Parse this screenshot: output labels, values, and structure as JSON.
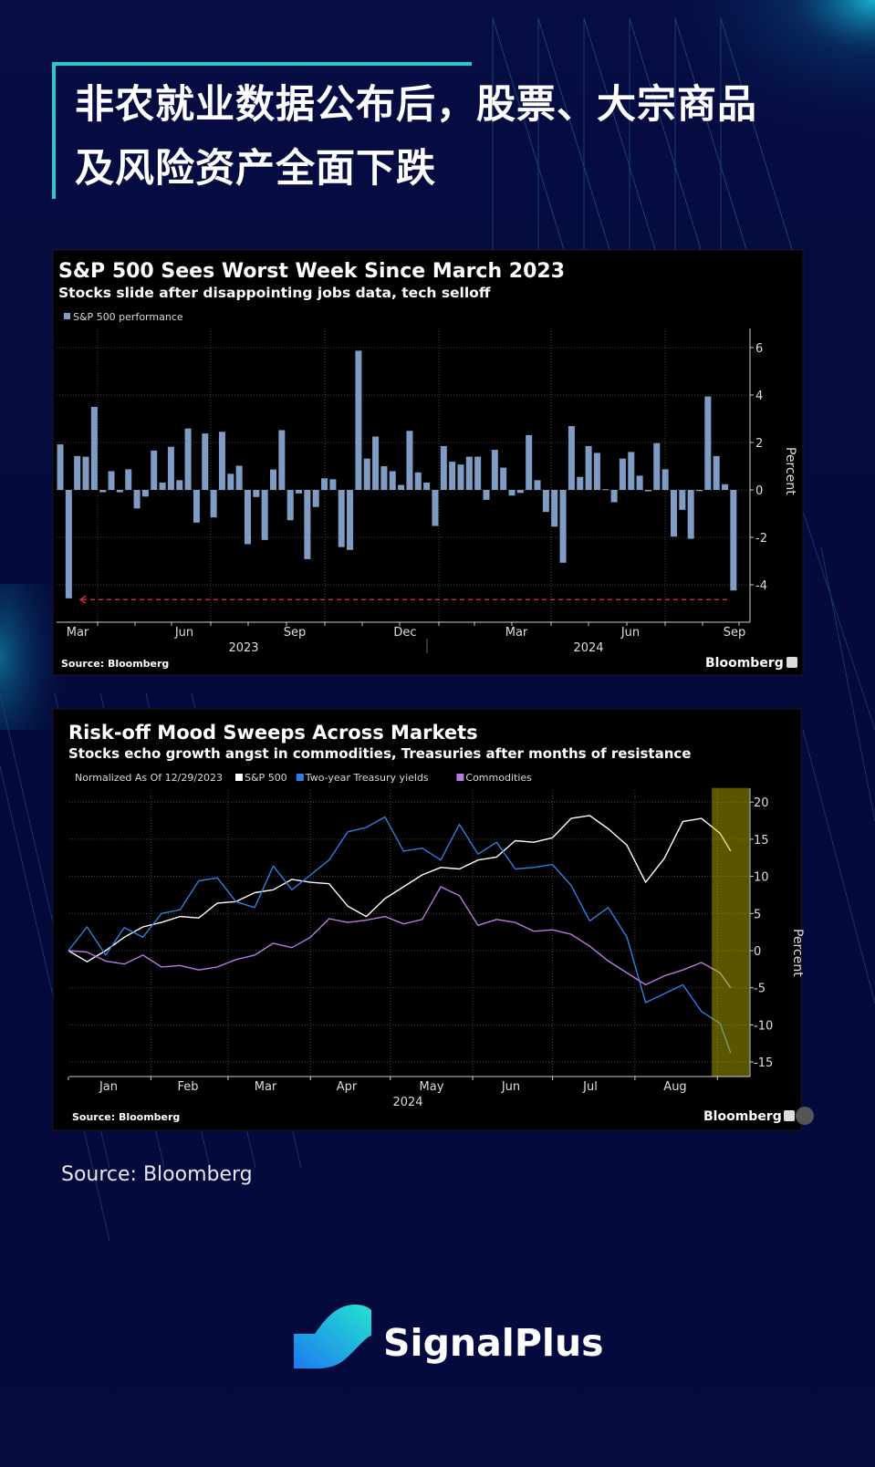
{
  "headline": {
    "line1": "非农就业数据公布后，股票、大宗商品",
    "line2": "及风险资产全面下跌",
    "accent": "#2cc7c9"
  },
  "page_source": "Source: Bloomberg",
  "brand": {
    "name": "SignalPlus"
  },
  "chart_data": [
    {
      "type": "bar",
      "title": "S&P 500 Sees Worst Week Since March 2023",
      "subtitle": "Stocks slide after disappointing jobs data, tech selloff",
      "legend": "S&P 500 performance",
      "ylabel": "Percent",
      "ylim": [
        -5.6,
        6.7
      ],
      "yticks": [
        6,
        4,
        2,
        0,
        -2,
        -4
      ],
      "ytick_labels": [
        "6",
        "4",
        "2",
        "0",
        "-2",
        "-4"
      ],
      "xtick_labels": [
        "Mar",
        "Jun",
        "Sep",
        "Dec",
        "Mar",
        "Jun",
        "Sep"
      ],
      "year_labels": [
        "2023",
        "2024"
      ],
      "grid": true,
      "bar_color": "#7f9cc4",
      "reference_line": {
        "value": -4.24,
        "color": "#c0303a",
        "style": "dashed-arrow"
      },
      "values": [
        1.92,
        -4.57,
        1.43,
        1.4,
        3.5,
        -0.1,
        0.79,
        -0.1,
        0.87,
        -0.78,
        -0.28,
        1.66,
        0.31,
        1.82,
        0.41,
        2.59,
        -1.38,
        2.38,
        -1.16,
        2.45,
        0.68,
        1.02,
        -2.29,
        -0.3,
        -2.11,
        0.86,
        2.52,
        -1.28,
        -0.15,
        -2.92,
        -0.72,
        0.49,
        0.45,
        -2.41,
        -2.53,
        5.87,
        1.32,
        2.25,
        1.0,
        0.79,
        0.21,
        2.49,
        0.74,
        0.31,
        -1.52,
        1.85,
        1.19,
        1.07,
        1.4,
        1.4,
        -0.42,
        1.69,
        0.94,
        -0.24,
        -0.13,
        2.31,
        0.41,
        -0.93,
        -1.55,
        -3.07,
        2.69,
        0.55,
        1.85,
        1.56,
        0.03,
        -0.52,
        1.32,
        1.6,
        0.6,
        -0.06,
        1.97,
        0.87,
        -1.97,
        -0.84,
        -2.06,
        -0.05,
        3.94,
        1.43,
        0.24,
        -4.24
      ],
      "source": "Source: Bloomberg",
      "brand": "Bloomberg"
    },
    {
      "type": "line",
      "title": "Risk-off Mood Sweeps Across Markets",
      "subtitle": "Stocks echo growth angst in commodities, Treasuries after months of resistance",
      "note": "Normalized As Of 12/29/2023",
      "ylabel": "Percent",
      "ylim": [
        -17,
        22
      ],
      "yticks": [
        20,
        15,
        10,
        5,
        0,
        -5,
        -10,
        -15
      ],
      "ytick_labels": [
        "20",
        "15",
        "10",
        "5",
        "0",
        "-5",
        "-10",
        "-15"
      ],
      "xtick_labels": [
        "Jan",
        "Feb",
        "Mar",
        "Apr",
        "May",
        "Jun",
        "Jul",
        "Aug"
      ],
      "year_label": "2024",
      "grid": true,
      "highlight": {
        "from": "2024-08-30",
        "to": "2024-09-13",
        "color": "#c8be00"
      },
      "x": [
        "2024-01-01",
        "2024-01-08",
        "2024-01-15",
        "2024-01-22",
        "2024-01-29",
        "2024-02-05",
        "2024-02-12",
        "2024-02-19",
        "2024-02-26",
        "2024-03-04",
        "2024-03-11",
        "2024-03-18",
        "2024-03-25",
        "2024-04-01",
        "2024-04-08",
        "2024-04-15",
        "2024-04-22",
        "2024-04-29",
        "2024-05-06",
        "2024-05-13",
        "2024-05-20",
        "2024-05-27",
        "2024-06-03",
        "2024-06-10",
        "2024-06-17",
        "2024-06-24",
        "2024-07-01",
        "2024-07-08",
        "2024-07-15",
        "2024-07-22",
        "2024-07-29",
        "2024-08-05",
        "2024-08-12",
        "2024-08-19",
        "2024-08-26",
        "2024-09-02",
        "2024-09-06"
      ],
      "series": [
        {
          "name": "S&P 500",
          "color": "#ffffff",
          "values": [
            0,
            -1.5,
            0,
            1.8,
            3.2,
            3.8,
            4.6,
            4.4,
            6.4,
            6.6,
            7.8,
            8.2,
            9.6,
            9.2,
            9.0,
            6.0,
            4.6,
            7.0,
            8.6,
            10.2,
            11.2,
            11.0,
            12.2,
            12.6,
            14.8,
            14.6,
            15.2,
            17.8,
            18.2,
            16.4,
            14.2,
            9.2,
            12.4,
            17.4,
            17.8,
            15.8,
            13.4
          ]
        },
        {
          "name": "Two-year Treasury yields",
          "color": "#2f7fe0",
          "values": [
            0,
            3.2,
            -0.6,
            3.1,
            1.8,
            5.0,
            5.5,
            9.4,
            9.8,
            6.6,
            5.8,
            11.4,
            8.2,
            10.2,
            12.2,
            16.0,
            16.6,
            18.0,
            13.4,
            13.8,
            12.2,
            17.0,
            13.0,
            14.6,
            11.0,
            11.2,
            11.6,
            8.8,
            4.0,
            5.8,
            1.8,
            -7.0,
            -5.8,
            -4.6,
            -8.2,
            -9.8,
            -13.8
          ]
        },
        {
          "name": "Commodities",
          "color": "#b57be0",
          "values": [
            0,
            -0.2,
            -1.4,
            -1.8,
            -0.6,
            -2.2,
            -2.0,
            -2.6,
            -2.2,
            -1.2,
            -0.6,
            1.0,
            0.4,
            1.8,
            4.3,
            3.8,
            4.1,
            4.6,
            3.6,
            4.2,
            8.6,
            7.4,
            3.4,
            4.2,
            3.8,
            2.6,
            2.8,
            2.2,
            0.6,
            -1.4,
            -3.0,
            -4.6,
            -3.4,
            -2.6,
            -1.6,
            -3.0,
            -5.0
          ]
        }
      ],
      "source": "Source: Bloomberg",
      "brand": "Bloomberg"
    }
  ]
}
